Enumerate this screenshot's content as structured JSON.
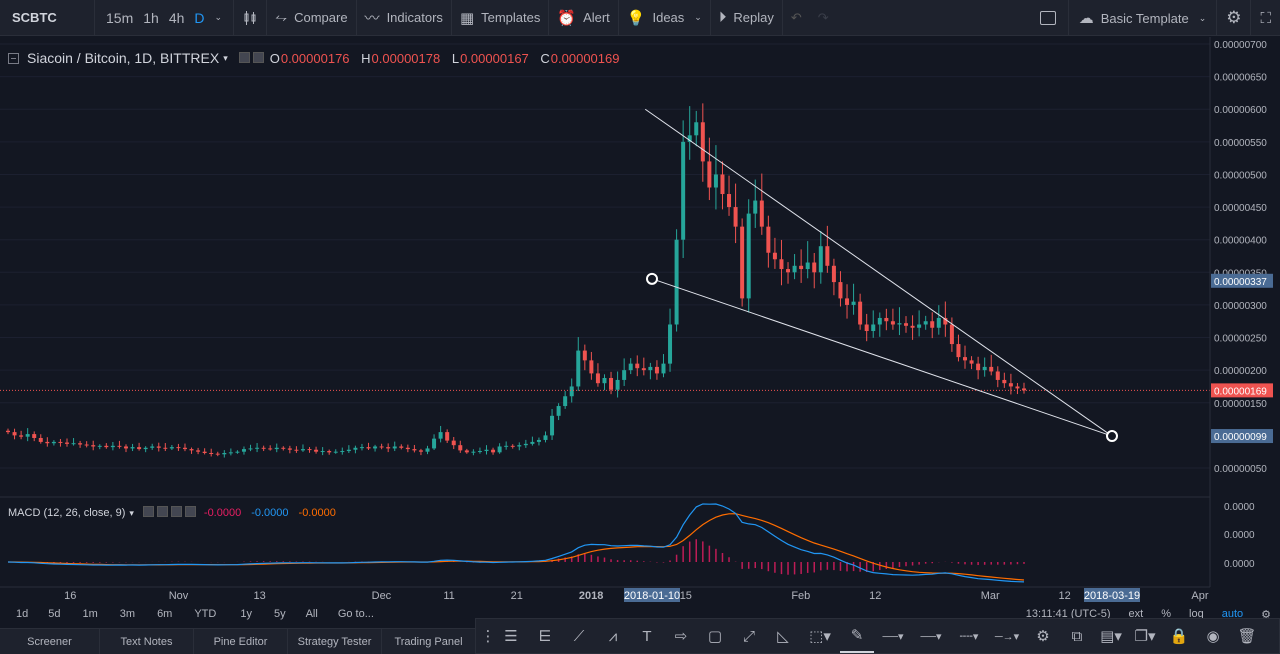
{
  "toolbar": {
    "symbol": "SCBTC",
    "intervals": [
      "15m",
      "1h",
      "4h",
      "D"
    ],
    "active_interval": "D",
    "compare_label": "Compare",
    "indicators_label": "Indicators",
    "templates_label": "Templates",
    "alert_label": "Alert",
    "ideas_label": "Ideas",
    "replay_label": "Replay",
    "basic_template_label": "Basic Template"
  },
  "legend": {
    "title": "Siacoin / Bitcoin, 1D, BITTREX",
    "o_label": "O",
    "o_value": "0.00000176",
    "h_label": "H",
    "h_value": "0.00000178",
    "l_label": "L",
    "l_value": "0.00000167",
    "c_label": "C",
    "c_value": "0.00000169"
  },
  "macd_legend": {
    "title": "MACD (12, 26, close, 9)",
    "v1": "-0.0000",
    "v2": "-0.0000",
    "v3": "-0.0000"
  },
  "price_axis": {
    "ticks": [
      "0.00000700",
      "0.00000650",
      "0.00000600",
      "0.00000550",
      "0.00000500",
      "0.00000450",
      "0.00000400",
      "0.00000350",
      "0.00000300",
      "0.00000250",
      "0.00000200",
      "0.00000150",
      "0.00000050"
    ],
    "current_price_label": "0.00000169",
    "line_label_upper": "0.00000337",
    "line_label_lower": "0.00000099"
  },
  "macd_axis": {
    "ticks": [
      "0.0000",
      "0.0000",
      "0.0000"
    ]
  },
  "time_axis": {
    "ticks": [
      "16",
      "Nov",
      "13",
      "Dec",
      "11",
      "21",
      "2018",
      "15",
      "Feb",
      "12",
      "Mar",
      "12",
      "Apr"
    ],
    "cursor_label": "2018-01-10",
    "end_label": "2018-03-19"
  },
  "rangebar": {
    "ranges": [
      "1d",
      "5d",
      "1m",
      "3m",
      "6m",
      "YTD",
      "1y",
      "5y",
      "All",
      "Go to..."
    ],
    "time": "13:11:41 (UTC-5)",
    "ext": "ext",
    "pct": "%",
    "log": "log",
    "auto": "auto"
  },
  "tabs": [
    "Screener",
    "Text Notes",
    "Pine Editor",
    "Strategy Tester",
    "Trading Panel"
  ],
  "colors": {
    "up": "#26a69a",
    "down": "#ef5350",
    "macd": "#2196f3",
    "signal": "#ff6d00",
    "accent": "#2196f3",
    "background": "#131722"
  },
  "chart_data": {
    "type": "candlestick",
    "title": "Siacoin / Bitcoin, 1D, BITTREX",
    "price_range": [
      3e-07,
      7.1e-06
    ],
    "close_series_approx": [
      1.05e-06,
      1e-06,
      9.8e-07,
      1.02e-06,
      9.6e-07,
      9e-07,
      8.8e-07,
      9e-07,
      8.9e-07,
      8.7e-07,
      8.8e-07,
      8.6e-07,
      8.5e-07,
      8.3e-07,
      8.4e-07,
      8.2e-07,
      8.4e-07,
      8.3e-07,
      8e-07,
      8.2e-07,
      7.9e-07,
      8.1e-07,
      8.3e-07,
      8.1e-07,
      8e-07,
      8.2e-07,
      8.1e-07,
      7.9e-07,
      7.7e-07,
      7.5e-07,
      7.3e-07,
      7.2e-07,
      7.1e-07,
      7.3e-07,
      7.4e-07,
      7.5e-07,
      7.9e-07,
      8e-07,
      8.1e-07,
      8e-07,
      7.9e-07,
      8.1e-07,
      8e-07,
      7.8e-07,
      7.7e-07,
      7.9e-07,
      7.8e-07,
      7.5e-07,
      7.6e-07,
      7.4e-07,
      7.5e-07,
      7.6e-07,
      7.8e-07,
      8.1e-07,
      8.2e-07,
      8e-07,
      8.3e-07,
      8.2e-07,
      8e-07,
      8.3e-07,
      8.1e-07,
      7.9e-07,
      7.7e-07,
      7.5e-07,
      8e-07,
      9.5e-07,
      1.05e-06,
      9.2e-07,
      8.5e-07,
      7.7e-07,
      7.4e-07,
      7.5e-07,
      7.6e-07,
      7.8e-07,
      7.4e-07,
      8.3e-07,
      8.4e-07,
      8.3e-07,
      8.5e-07,
      8.7e-07,
      9e-07,
      9.3e-07,
      1e-06,
      1.3e-06,
      1.45e-06,
      1.6e-06,
      1.75e-06,
      2.3e-06,
      2.15e-06,
      1.95e-06,
      1.8e-06,
      1.88e-06,
      1.7e-06,
      1.85e-06,
      2e-06,
      2.1e-06,
      2.03e-06,
      2e-06,
      2.05e-06,
      1.95e-06,
      2.1e-06,
      2.7e-06,
      4e-06,
      5.5e-06,
      5.6e-06,
      5.8e-06,
      5.2e-06,
      4.8e-06,
      5e-06,
      4.7e-06,
      4.5e-06,
      4.2e-06,
      3.1e-06,
      4.4e-06,
      4.6e-06,
      4.2e-06,
      3.8e-06,
      3.7e-06,
      3.55e-06,
      3.5e-06,
      3.6e-06,
      3.55e-06,
      3.65e-06,
      3.5e-06,
      3.9e-06,
      3.6e-06,
      3.35e-06,
      3.1e-06,
      3e-06,
      3.05e-06,
      2.7e-06,
      2.6e-06,
      2.7e-06,
      2.8e-06,
      2.75e-06,
      2.7e-06,
      2.72e-06,
      2.68e-06,
      2.65e-06,
      2.7e-06,
      2.75e-06,
      2.65e-06,
      2.8e-06,
      2.7e-06,
      2.4e-06,
      2.2e-06,
      2.15e-06,
      2.1e-06,
      2e-06,
      2.05e-06,
      1.98e-06,
      1.85e-06,
      1.8e-06,
      1.75e-06,
      1.72e-06,
      1.69e-06
    ],
    "trendlines": [
      {
        "name": "upper",
        "from": [
          "2018-01-09",
          6e-06
        ],
        "to": [
          "2018-03-19",
          9.9e-07
        ]
      },
      {
        "name": "lower",
        "from": [
          "2018-01-10",
          3.4e-06
        ],
        "to": [
          "2018-03-19",
          9.9e-07
        ]
      }
    ]
  }
}
